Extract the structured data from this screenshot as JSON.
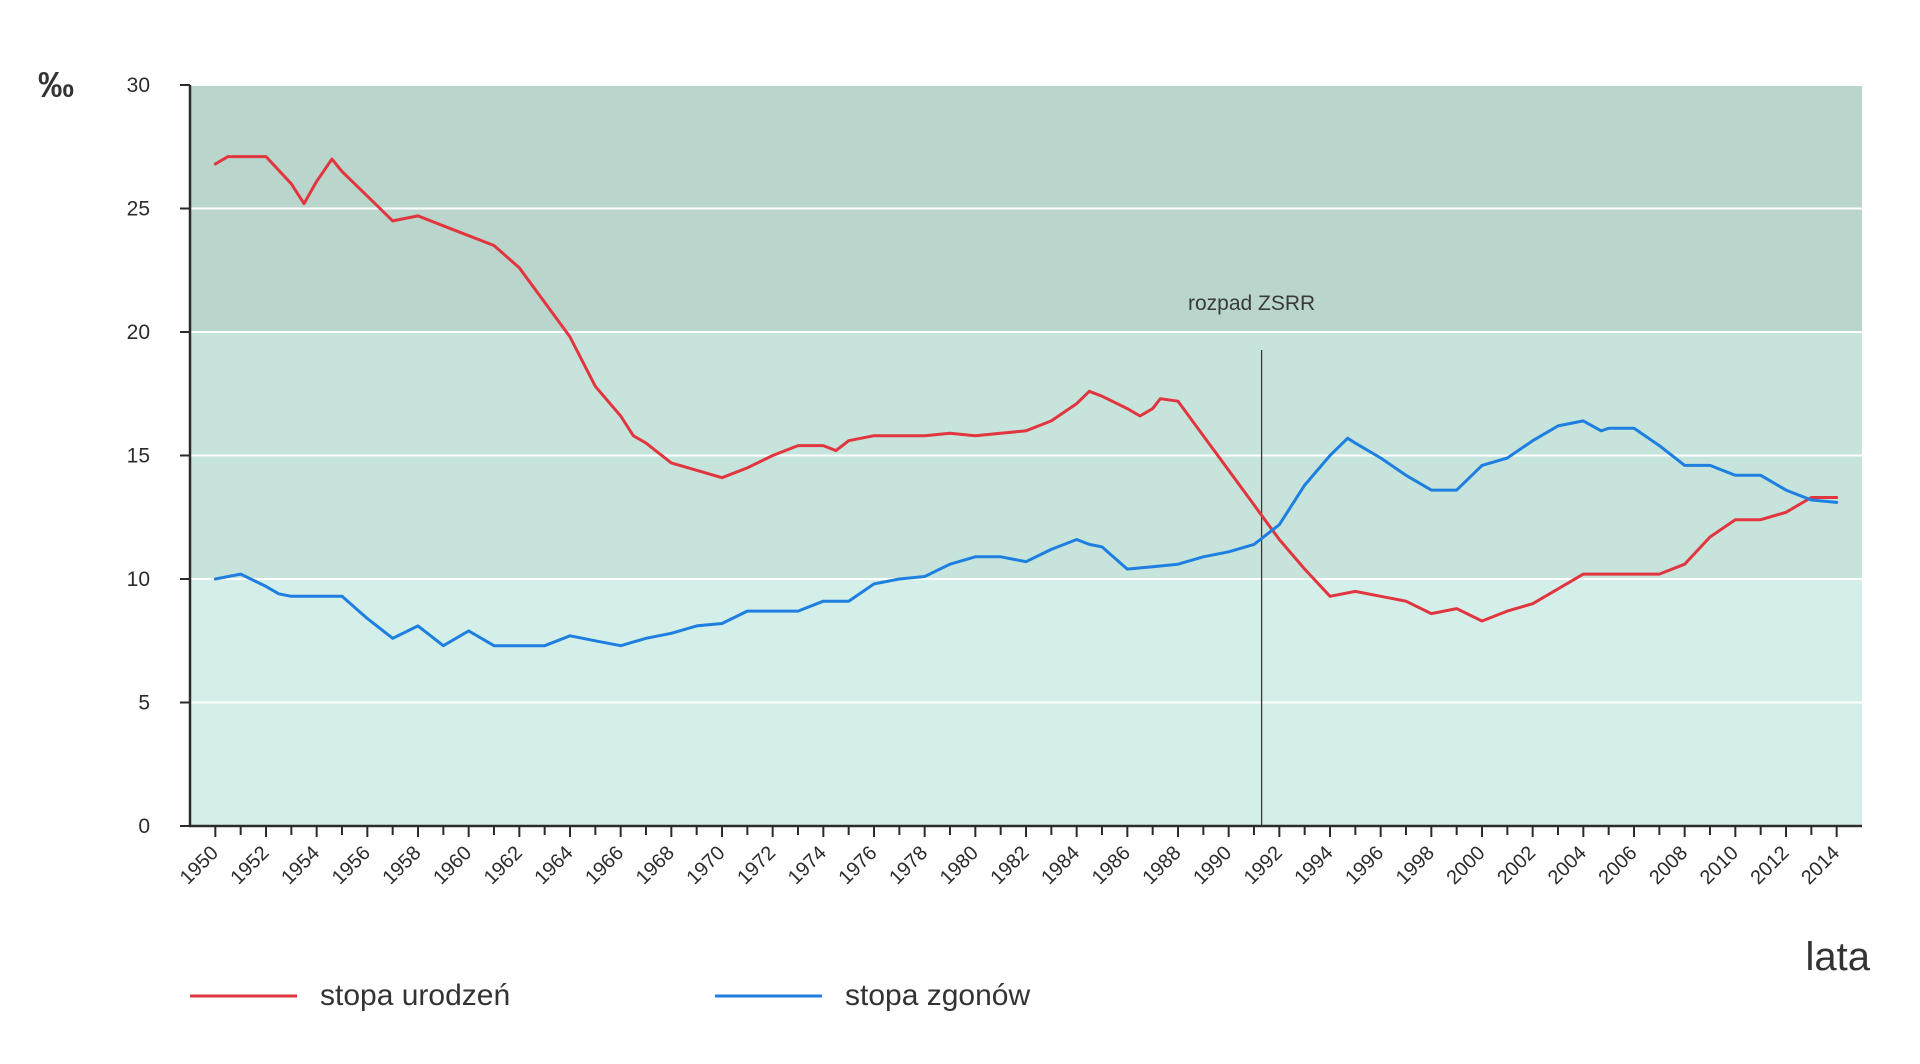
{
  "chart_data": {
    "type": "line",
    "ylabel": "‰",
    "xlabel": "lata",
    "ylim": [
      0,
      30
    ],
    "xlim": [
      1949,
      2015
    ],
    "yticks": [
      0,
      5,
      10,
      15,
      20,
      25,
      30
    ],
    "xticks": [
      1950,
      1952,
      1954,
      1956,
      1958,
      1960,
      1962,
      1964,
      1966,
      1968,
      1970,
      1972,
      1974,
      1976,
      1978,
      1980,
      1982,
      1984,
      1986,
      1988,
      1990,
      1992,
      1994,
      1996,
      1998,
      2000,
      2002,
      2004,
      2006,
      2008,
      2010,
      2012,
      2014
    ],
    "grid": true,
    "legend_position": "bottom",
    "bands": [
      {
        "from": 20,
        "to": 30,
        "color": "#b9d5cc"
      },
      {
        "from": 10,
        "to": 20,
        "color": "#c6e4dc"
      },
      {
        "from": 0,
        "to": 10,
        "color": "#d4efe9"
      }
    ],
    "annotation": {
      "x": 1991.3,
      "label": "rozpad ZSRR",
      "color": "#3a3a3a"
    },
    "series": [
      {
        "name": "stopa urodzeń",
        "color": "#e1363f",
        "points": [
          [
            1950,
            26.8
          ],
          [
            1950.5,
            27.1
          ],
          [
            1951,
            27.1
          ],
          [
            1952,
            27.1
          ],
          [
            1953,
            26.0
          ],
          [
            1953.5,
            25.2
          ],
          [
            1954,
            26.1
          ],
          [
            1954.6,
            27.0
          ],
          [
            1955,
            26.5
          ],
          [
            1956,
            25.5
          ],
          [
            1957,
            24.5
          ],
          [
            1957.5,
            24.6
          ],
          [
            1958,
            24.7
          ],
          [
            1959,
            24.3
          ],
          [
            1960,
            23.9
          ],
          [
            1961,
            23.5
          ],
          [
            1962,
            22.6
          ],
          [
            1963,
            21.2
          ],
          [
            1964,
            19.8
          ],
          [
            1965,
            17.8
          ],
          [
            1966,
            16.6
          ],
          [
            1966.5,
            15.8
          ],
          [
            1967,
            15.5
          ],
          [
            1968,
            14.7
          ],
          [
            1969,
            14.4
          ],
          [
            1970,
            14.1
          ],
          [
            1971,
            14.5
          ],
          [
            1972,
            15.0
          ],
          [
            1973,
            15.4
          ],
          [
            1974,
            15.4
          ],
          [
            1974.5,
            15.2
          ],
          [
            1975,
            15.6
          ],
          [
            1976,
            15.8
          ],
          [
            1977,
            15.8
          ],
          [
            1978,
            15.8
          ],
          [
            1979,
            15.9
          ],
          [
            1980,
            15.8
          ],
          [
            1981,
            15.9
          ],
          [
            1982,
            16.0
          ],
          [
            1983,
            16.4
          ],
          [
            1984,
            17.1
          ],
          [
            1984.5,
            17.6
          ],
          [
            1985,
            17.4
          ],
          [
            1986,
            16.9
          ],
          [
            1986.5,
            16.6
          ],
          [
            1987,
            16.9
          ],
          [
            1987.3,
            17.3
          ],
          [
            1988,
            17.2
          ],
          [
            1989,
            15.8
          ],
          [
            1990,
            14.4
          ],
          [
            1991,
            13.0
          ],
          [
            1992,
            11.6
          ],
          [
            1993,
            10.4
          ],
          [
            1994,
            9.3
          ],
          [
            1995,
            9.5
          ],
          [
            1996,
            9.3
          ],
          [
            1997,
            9.1
          ],
          [
            1998,
            8.6
          ],
          [
            1999,
            8.8
          ],
          [
            2000,
            8.3
          ],
          [
            2001,
            8.7
          ],
          [
            2002,
            9.0
          ],
          [
            2003,
            9.6
          ],
          [
            2004,
            10.2
          ],
          [
            2005,
            10.2
          ],
          [
            2006,
            10.2
          ],
          [
            2007,
            10.2
          ],
          [
            2008,
            10.6
          ],
          [
            2009,
            11.7
          ],
          [
            2010,
            12.4
          ],
          [
            2011,
            12.4
          ],
          [
            2012,
            12.7
          ],
          [
            2013,
            13.3
          ],
          [
            2014,
            13.3
          ]
        ]
      },
      {
        "name": "stopa zgonów",
        "color": "#1e7fe0",
        "points": [
          [
            1950,
            10.0
          ],
          [
            1951,
            10.2
          ],
          [
            1952,
            9.7
          ],
          [
            1952.5,
            9.4
          ],
          [
            1953,
            9.3
          ],
          [
            1954,
            9.3
          ],
          [
            1955,
            9.3
          ],
          [
            1956,
            8.4
          ],
          [
            1957,
            7.6
          ],
          [
            1958,
            8.1
          ],
          [
            1959,
            7.3
          ],
          [
            1960,
            7.9
          ],
          [
            1961,
            7.3
          ],
          [
            1962,
            7.3
          ],
          [
            1963,
            7.3
          ],
          [
            1964,
            7.7
          ],
          [
            1965,
            7.5
          ],
          [
            1966,
            7.3
          ],
          [
            1967,
            7.6
          ],
          [
            1968,
            7.8
          ],
          [
            1969,
            8.1
          ],
          [
            1970,
            8.2
          ],
          [
            1971,
            8.7
          ],
          [
            1972,
            8.7
          ],
          [
            1973,
            8.7
          ],
          [
            1974,
            9.1
          ],
          [
            1975,
            9.1
          ],
          [
            1976,
            9.8
          ],
          [
            1977,
            10.0
          ],
          [
            1978,
            10.1
          ],
          [
            1979,
            10.6
          ],
          [
            1980,
            10.9
          ],
          [
            1981,
            10.9
          ],
          [
            1982,
            10.7
          ],
          [
            1983,
            11.2
          ],
          [
            1984,
            11.6
          ],
          [
            1984.5,
            11.4
          ],
          [
            1985,
            11.3
          ],
          [
            1986,
            10.4
          ],
          [
            1987,
            10.5
          ],
          [
            1988,
            10.6
          ],
          [
            1989,
            10.9
          ],
          [
            1990,
            11.1
          ],
          [
            1991,
            11.4
          ],
          [
            1992,
            12.2
          ],
          [
            1993,
            13.8
          ],
          [
            1994,
            15.0
          ],
          [
            1994.7,
            15.7
          ],
          [
            1995,
            15.5
          ],
          [
            1996,
            14.9
          ],
          [
            1997,
            14.2
          ],
          [
            1998,
            13.6
          ],
          [
            1999,
            13.6
          ],
          [
            2000,
            14.6
          ],
          [
            2001,
            14.9
          ],
          [
            2002,
            15.6
          ],
          [
            2003,
            16.2
          ],
          [
            2004,
            16.4
          ],
          [
            2004.7,
            16.0
          ],
          [
            2005,
            16.1
          ],
          [
            2006,
            16.1
          ],
          [
            2007,
            15.4
          ],
          [
            2008,
            14.6
          ],
          [
            2009,
            14.6
          ],
          [
            2010,
            14.2
          ],
          [
            2011,
            14.2
          ],
          [
            2012,
            13.6
          ],
          [
            2013,
            13.2
          ],
          [
            2014,
            13.1
          ]
        ]
      }
    ]
  }
}
